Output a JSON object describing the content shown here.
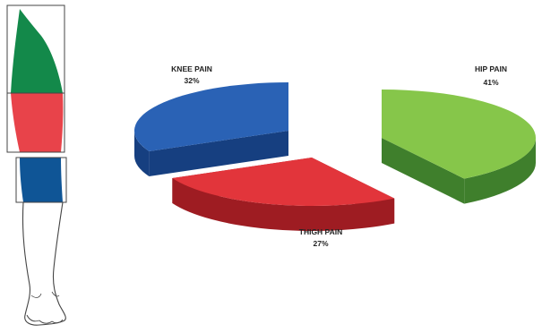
{
  "chart_data": {
    "type": "pie",
    "title": "",
    "three_d": true,
    "exploded": true,
    "legend": "none",
    "slices": [
      {
        "label": "HIP PAIN",
        "value": 41,
        "value_label": "41%",
        "color": "#86c64a",
        "side_color": "#3f7f2c"
      },
      {
        "label": "THIGH PAIN",
        "value": 27,
        "value_label": "27%",
        "color": "#e2353b",
        "side_color": "#9e1c22"
      },
      {
        "label": "KNEE PAIN",
        "value": 32,
        "value_label": "32%",
        "color": "#2a62b5",
        "side_color": "#163f80"
      }
    ]
  },
  "leg_diagram": {
    "regions": [
      {
        "name": "hip",
        "color": "#13894a"
      },
      {
        "name": "thigh",
        "color": "#e8434a"
      },
      {
        "name": "knee",
        "color": "#0f5596"
      }
    ],
    "outline_color": "#444444"
  }
}
